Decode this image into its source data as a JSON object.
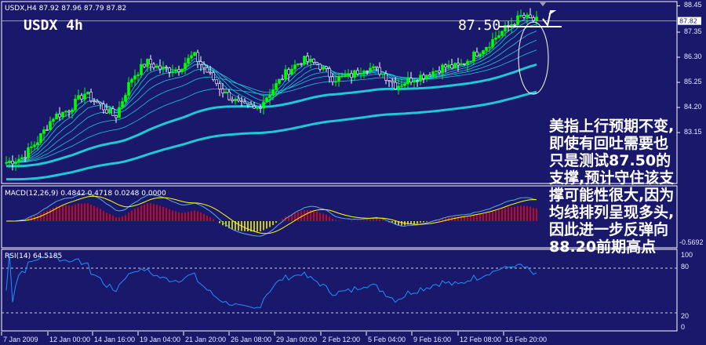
{
  "header": {
    "symbol_line": "USDX,H4  87.92 87.96 87.79 87.82",
    "title": "USDX 4h",
    "level_label": "87.50"
  },
  "annotation": "美指上行预期不变,即使有回吐需要也只是测试87.50的支撑,预计守住该支撑可能性很大,因为均线排列呈现多头,因此进一步反弹向88.20前期高点",
  "macd": {
    "label": "MACD(12,26,9) 0.4842 0.4718 0.0248 0.0000",
    "scale": [
      "-0.5692"
    ]
  },
  "rsi": {
    "label": "RSI(14) 64.5185",
    "scale": [
      "100",
      "80",
      "20",
      "0"
    ]
  },
  "colors": {
    "background": "#1a186b",
    "bull": "#00ff00",
    "ma": "#1ec8d6",
    "macd_pos": "#ff0000",
    "macd_neg": "#ffff00",
    "rsi": "#1e90ff",
    "signal": "#ffff00"
  },
  "chart_data": {
    "type": "candlestick",
    "symbol": "USDX",
    "timeframe": "H4",
    "y_ticks": [
      "88.45",
      "87.35",
      "86.30",
      "85.25",
      "84.20",
      "83.15"
    ],
    "ylim": [
      81.0,
      88.55
    ],
    "current_price": "87.82",
    "x_ticks": [
      "7 Jan 2009",
      "12 Jan 00:00",
      "14 Jan 16:00",
      "19 Jan 04:00",
      "21 Jan 20:00",
      "26 Jan 08:00",
      "29 Jan 00:00",
      "2 Feb 12:00",
      "5 Feb 04:00",
      "9 Feb 16:00",
      "12 Feb 08:00",
      "16 Feb 20:00"
    ],
    "approx_close_path": [
      81.9,
      82.1,
      82.8,
      83.8,
      84.1,
      84.8,
      84.3,
      83.8,
      85.4,
      86.1,
      85.8,
      85.8,
      86.4,
      85.6,
      84.8,
      84.3,
      84.1,
      84.9,
      85.7,
      86.2,
      86.0,
      85.4,
      85.5,
      85.9,
      85.7,
      85.1,
      85.4,
      85.6,
      85.9,
      85.9,
      86.4,
      86.9,
      87.5,
      88.0,
      87.82
    ]
  }
}
